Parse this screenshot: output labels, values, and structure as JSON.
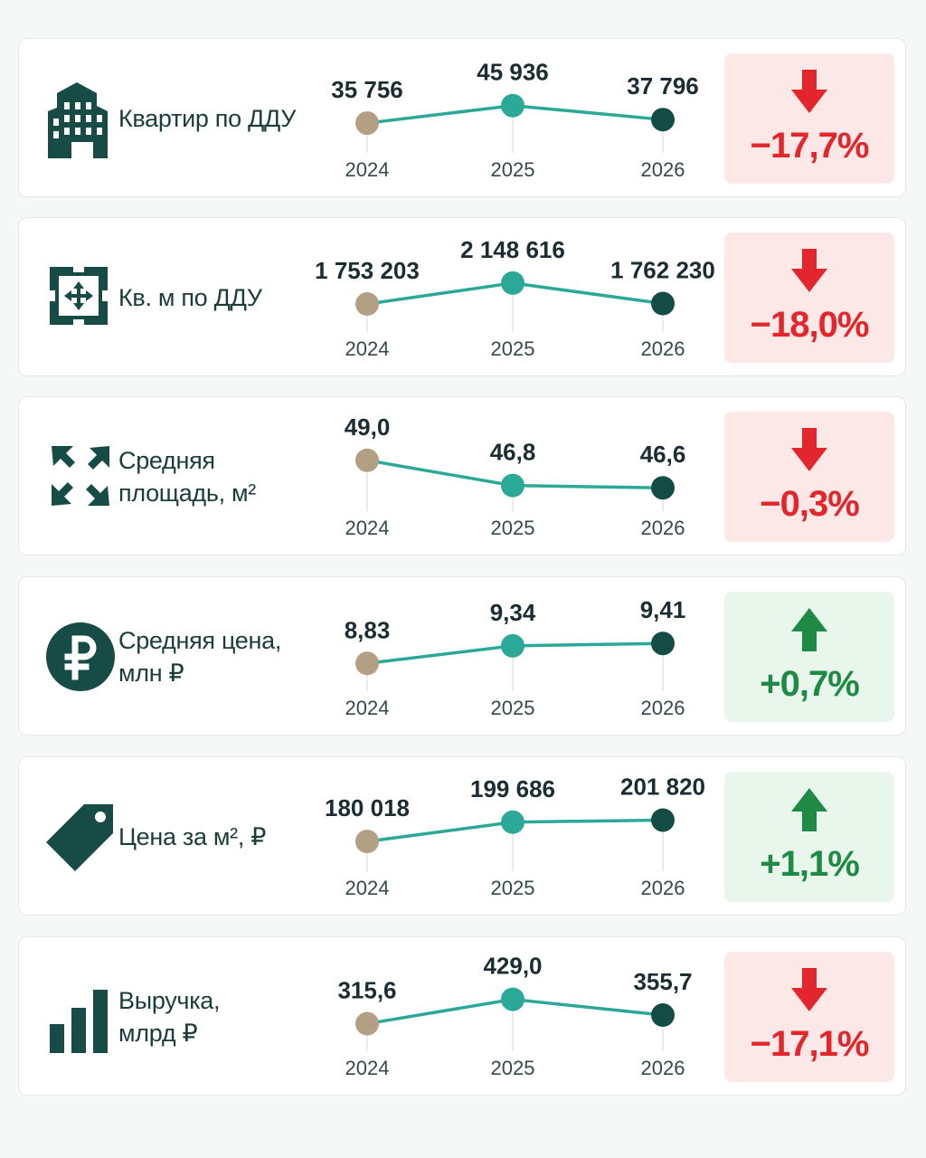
{
  "colors": {
    "icon": "#164b46",
    "line": "#2ba898",
    "dot_2024": "#b29f84",
    "dot_2025": "#2ba898",
    "dot_2026": "#134c44",
    "down": "#e3262b",
    "up": "#1f8a45"
  },
  "chart_data": [
    {
      "type": "line",
      "label": [
        "Квартир по ДДУ"
      ],
      "icon": "building-icon",
      "x": [
        "2024",
        "2025",
        "2026"
      ],
      "values": [
        35756,
        45936,
        37796
      ],
      "value_labels": [
        "35 756",
        "45 936",
        "37 796"
      ],
      "change": "−17,7%",
      "direction": "down"
    },
    {
      "type": "line",
      "label": [
        "Кв. м по ДДУ"
      ],
      "icon": "square-meter-icon",
      "x": [
        "2024",
        "2025",
        "2026"
      ],
      "values": [
        1753203,
        2148616,
        1762230
      ],
      "value_labels": [
        "1 753 203",
        "2 148 616",
        "1 762 230"
      ],
      "change": "−18,0%",
      "direction": "down"
    },
    {
      "type": "line",
      "label": [
        "Средняя",
        "площадь, м²"
      ],
      "icon": "expand-arrows-icon",
      "x": [
        "2024",
        "2025",
        "2026"
      ],
      "values": [
        49.0,
        46.8,
        46.6
      ],
      "value_labels": [
        "49,0",
        "46,8",
        "46,6"
      ],
      "change": "−0,3%",
      "direction": "down"
    },
    {
      "type": "line",
      "label": [
        "Средняя цена,",
        "млн ₽"
      ],
      "icon": "ruble-coin-icon",
      "x": [
        "2024",
        "2025",
        "2026"
      ],
      "values": [
        8.83,
        9.34,
        9.41
      ],
      "value_labels": [
        "8,83",
        "9,34",
        "9,41"
      ],
      "change": "+0,7%",
      "direction": "up"
    },
    {
      "type": "line",
      "label": [
        "Цена за м², ₽"
      ],
      "icon": "price-tag-icon",
      "x": [
        "2024",
        "2025",
        "2026"
      ],
      "values": [
        180018,
        199686,
        201820
      ],
      "value_labels": [
        "180 018",
        "199 686",
        "201 820"
      ],
      "change": "+1,1%",
      "direction": "up"
    },
    {
      "type": "line",
      "label": [
        "Выручка,",
        "млрд ₽"
      ],
      "icon": "bar-chart-icon",
      "x": [
        "2024",
        "2025",
        "2026"
      ],
      "values": [
        315.6,
        429.0,
        355.7
      ],
      "value_labels": [
        "315,6",
        "429,0",
        "355,7"
      ],
      "change": "−17,1%",
      "direction": "down"
    }
  ]
}
